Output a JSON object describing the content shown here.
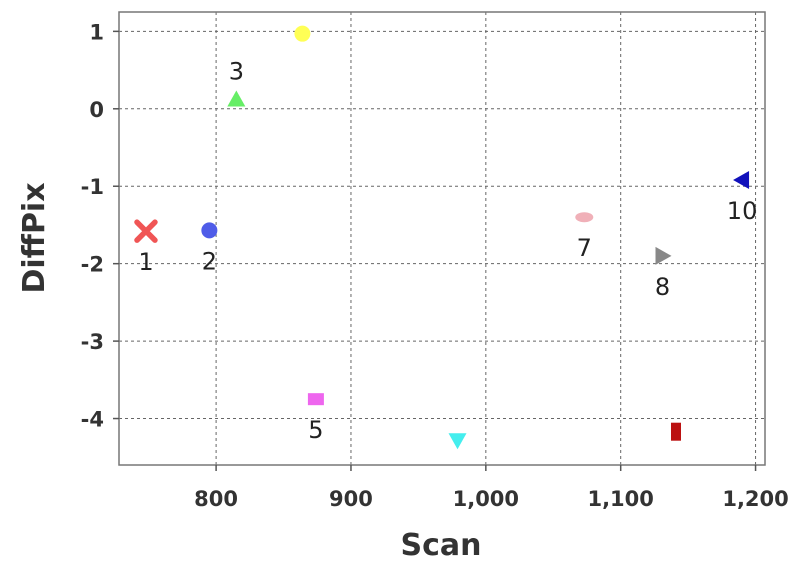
{
  "chart_data": {
    "type": "scatter",
    "xlabel": "Scan",
    "ylabel": "DiffPix",
    "xlim": [
      728,
      1207
    ],
    "ylim": [
      -4.6,
      1.25
    ],
    "grid": true,
    "x_ticks": [
      800,
      900,
      1000,
      1100,
      1200
    ],
    "x_tick_labels": [
      "800",
      "900",
      "1,000",
      "1,100",
      "1,200"
    ],
    "y_ticks": [
      1,
      0,
      -1,
      -2,
      -3,
      -4
    ],
    "y_tick_labels": [
      "1",
      "0",
      "-1",
      "-2",
      "-3",
      "-4"
    ],
    "points": [
      {
        "label": "1",
        "x": 748,
        "y": -1.58,
        "marker": "x",
        "color": "#f05555"
      },
      {
        "label": "2",
        "x": 795,
        "y": -1.57,
        "marker": "circle",
        "color": "#4f5ce8"
      },
      {
        "label": "3",
        "x": 815,
        "y": 0.12,
        "marker": "triangle-up",
        "color": "#66ee66"
      },
      {
        "label": "",
        "x": 864,
        "y": 0.97,
        "marker": "circle",
        "color": "#ffff55"
      },
      {
        "label": "5",
        "x": 874,
        "y": -3.75,
        "marker": "square",
        "color": "#ee66ee"
      },
      {
        "label": "",
        "x": 979,
        "y": -4.28,
        "marker": "triangle-down",
        "color": "#44eeee"
      },
      {
        "label": "7",
        "x": 1073,
        "y": -1.4,
        "marker": "ellipse",
        "color": "#f0b0b8"
      },
      {
        "label": "8",
        "x": 1131,
        "y": -1.9,
        "marker": "triangle-right",
        "color": "#888888"
      },
      {
        "label": "",
        "x": 1141,
        "y": -4.17,
        "marker": "rect-vertical",
        "color": "#bb1111"
      },
      {
        "label": "10",
        "x": 1190,
        "y": -0.92,
        "marker": "triangle-left",
        "color": "#1111bb"
      }
    ]
  }
}
